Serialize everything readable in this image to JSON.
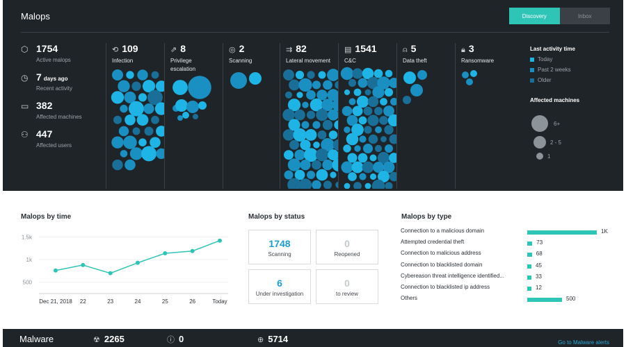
{
  "header": {
    "title": "Malops",
    "tabs": [
      {
        "label": "Discovery",
        "active": true
      },
      {
        "label": "Inbox",
        "active": false
      }
    ]
  },
  "stats": [
    {
      "icon": "hexagon-icon",
      "value": "1754",
      "unit": "",
      "label": "Active malops"
    },
    {
      "icon": "clock-icon",
      "value": "7",
      "unit": "days ago",
      "label": "Recent activity"
    },
    {
      "icon": "monitor-icon",
      "value": "382",
      "unit": "",
      "label": "Affected machines"
    },
    {
      "icon": "user-icon",
      "value": "447",
      "unit": "",
      "label": "Affected users"
    }
  ],
  "categories": [
    {
      "icon": "infection-icon",
      "count": "109",
      "name": "Infection",
      "name2": ""
    },
    {
      "icon": "privilege-escalation-icon",
      "count": "8",
      "name": "Privilege",
      "name2": "escalation"
    },
    {
      "icon": "scanning-icon",
      "count": "2",
      "name": "Scanning",
      "name2": ""
    },
    {
      "icon": "lateral-movement-icon",
      "count": "82",
      "name": "Lateral movement",
      "name2": ""
    },
    {
      "icon": "c2-icon",
      "count": "1541",
      "name": "C&C",
      "name2": ""
    },
    {
      "icon": "data-theft-icon",
      "count": "5",
      "name": "Data theft",
      "name2": ""
    },
    {
      "icon": "ransomware-icon",
      "count": "3",
      "name": "Ransomware",
      "name2": ""
    }
  ],
  "legend": {
    "activity_title": "Last activity time",
    "activity_items": [
      {
        "label": "Today",
        "color": "#1fb4e6"
      },
      {
        "label": "Past 2 weeks",
        "color": "#1a8fc1"
      },
      {
        "label": "Older",
        "color": "#1a6f99"
      }
    ],
    "machines_title": "Affected machines",
    "machines_items": [
      "6+",
      "2 - 5",
      "1"
    ]
  },
  "colors": {
    "today": "#1fb4e6",
    "past": "#1a8fc1",
    "older": "#1a6f99",
    "teal": "#2ec4b6"
  },
  "time_chart": {
    "title": "Malops by time",
    "chart_data": {
      "type": "line",
      "categories": [
        "Dec 21, 2018",
        "22",
        "23",
        "24",
        "25",
        "26",
        "Today"
      ],
      "values": [
        760,
        880,
        700,
        930,
        1140,
        1190,
        1420
      ],
      "yticks": [
        "1.5k",
        "1k",
        "500"
      ],
      "ylim": [
        250,
        1600
      ]
    }
  },
  "status": {
    "title": "Malops by status",
    "cards": [
      {
        "value": "1748",
        "label": "Scanning",
        "active": true
      },
      {
        "value": "0",
        "label": "Reopened",
        "active": false
      },
      {
        "value": "6",
        "label": "Under investigation",
        "active": true
      },
      {
        "value": "0",
        "label": "to review",
        "active": false
      }
    ]
  },
  "types": {
    "title": "Malops by type",
    "chart_data": {
      "type": "bar",
      "categories": [
        "Connection to a malicious domain",
        "Attempted credential theft",
        "Connection to malicious address",
        "Connection to blacklisted domain",
        "Cybereason threat intelligence identified...",
        "Connection to blacklisted ip address",
        "Others"
      ],
      "values": [
        1000,
        73,
        68,
        45,
        33,
        12,
        500
      ],
      "labels": [
        "1K",
        "73",
        "68",
        "45",
        "33",
        "12",
        "500"
      ]
    }
  },
  "footer": {
    "title": "Malware",
    "stats": [
      {
        "icon": "biohazard-icon",
        "value": "2265"
      },
      {
        "icon": "alert-circle-icon",
        "value": "0"
      },
      {
        "icon": "globe-icon",
        "value": "5714"
      }
    ],
    "link": "Go to Malware alerts"
  }
}
